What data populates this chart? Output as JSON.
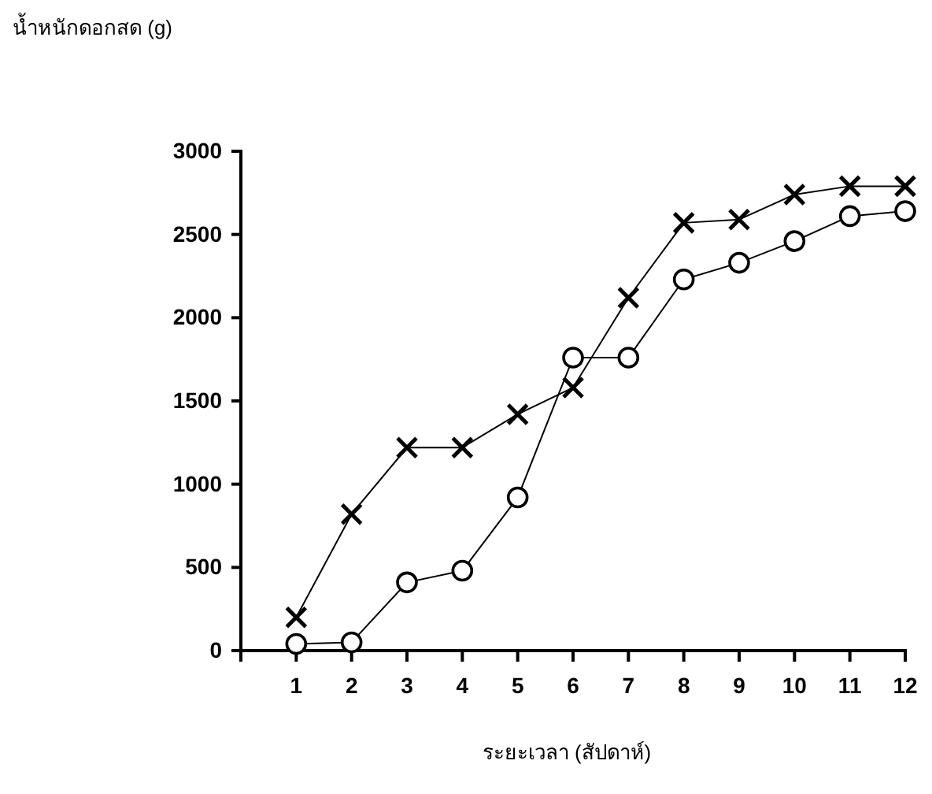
{
  "chart_data": {
    "type": "line",
    "title": "น้ำหนักดอกสด (g)",
    "xlabel": "ระยะเวลา (สัปดาห์)",
    "x": [
      1,
      2,
      3,
      4,
      5,
      6,
      7,
      8,
      9,
      10,
      11,
      12
    ],
    "series": [
      {
        "color": "#000000",
        "marker": "cross",
        "values": [
          200,
          820,
          1220,
          1220,
          1420,
          1580,
          2120,
          2570,
          2590,
          2740,
          2790,
          2790
        ]
      },
      {
        "color": "#000000",
        "marker": "circle",
        "values": [
          40,
          50,
          410,
          480,
          920,
          1760,
          1760,
          2230,
          2330,
          2460,
          2610,
          2640
        ]
      }
    ],
    "xlim": [
      0,
      12
    ],
    "xticks": [
      1,
      2,
      3,
      4,
      5,
      6,
      7,
      8,
      9,
      10,
      11,
      12
    ],
    "ylim": [
      0,
      3000
    ],
    "yticks": [
      0,
      500,
      1000,
      1500,
      2000,
      2500,
      3000
    ],
    "grid": false,
    "line_style": "solid"
  }
}
